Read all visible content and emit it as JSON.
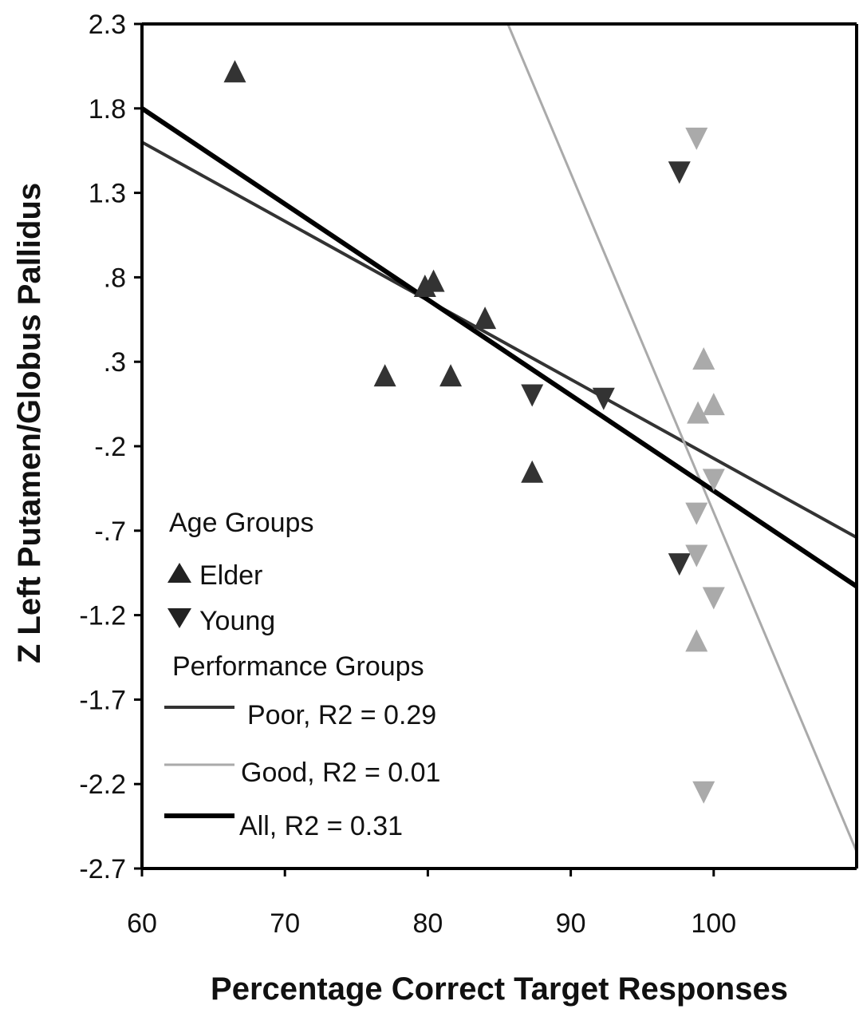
{
  "chart_data": {
    "type": "scatter",
    "xlabel": "Percentage Correct Target Responses",
    "ylabel": "Z Left Putamen/Globus Pallidus",
    "xlim": [
      60,
      110
    ],
    "ylim": [
      -2.7,
      2.3
    ],
    "xticks": [
      60,
      70,
      80,
      90,
      100
    ],
    "xtick_labels": [
      "60",
      "70",
      "80",
      "90",
      "100"
    ],
    "yticks": [
      2.3,
      1.8,
      1.3,
      0.8,
      0.3,
      -0.2,
      -0.7,
      -1.2,
      -1.7,
      -2.2,
      -2.7
    ],
    "ytick_labels": [
      "2.3",
      "1.8",
      "1.3",
      ".8",
      ".3",
      "-.2",
      "-.7",
      "-1.2",
      "-1.7",
      "-2.2",
      "-2.7"
    ],
    "grid": false,
    "legend": {
      "placement": "lower-left",
      "age_heading": "Age Groups",
      "perf_heading": "Performance Groups",
      "age_items": [
        {
          "label": "Elder",
          "marker": "triangle-up"
        },
        {
          "label": "Young",
          "marker": "triangle-down"
        }
      ],
      "perf_items": [
        {
          "label": "Poor, R2 = 0.29",
          "color": "#333333"
        },
        {
          "label": "Good, R2 = 0.01",
          "color": "#aaaaaa"
        },
        {
          "label": "All, R2 = 0.31",
          "color": "#000000"
        }
      ]
    },
    "colors": {
      "poor": "#333333",
      "good": "#aaaaaa",
      "all": "#000000"
    },
    "series": [
      {
        "name": "Poor",
        "color": "#333333",
        "points": [
          {
            "x": 66.5,
            "y": 2.02,
            "marker": "up"
          },
          {
            "x": 77,
            "y": 0.22,
            "marker": "up"
          },
          {
            "x": 79.8,
            "y": 0.75,
            "marker": "up"
          },
          {
            "x": 80.4,
            "y": 0.78,
            "marker": "up"
          },
          {
            "x": 81.6,
            "y": 0.22,
            "marker": "up"
          },
          {
            "x": 84,
            "y": 0.56,
            "marker": "up"
          },
          {
            "x": 87.3,
            "y": -0.35,
            "marker": "up"
          },
          {
            "x": 87.3,
            "y": 0.1,
            "marker": "down"
          },
          {
            "x": 92.3,
            "y": 0.08,
            "marker": "down"
          },
          {
            "x": 97.6,
            "y": 1.42,
            "marker": "down"
          },
          {
            "x": 97.6,
            "y": -0.9,
            "marker": "down"
          }
        ]
      },
      {
        "name": "Good",
        "color": "#aaaaaa",
        "points": [
          {
            "x": 98.8,
            "y": 1.62,
            "marker": "down"
          },
          {
            "x": 99.3,
            "y": 0.32,
            "marker": "up"
          },
          {
            "x": 98.9,
            "y": 0.0,
            "marker": "up"
          },
          {
            "x": 100,
            "y": 0.05,
            "marker": "up"
          },
          {
            "x": 100,
            "y": -0.4,
            "marker": "down"
          },
          {
            "x": 98.8,
            "y": -0.6,
            "marker": "down"
          },
          {
            "x": 98.8,
            "y": -0.85,
            "marker": "down"
          },
          {
            "x": 100,
            "y": -1.1,
            "marker": "down"
          },
          {
            "x": 98.8,
            "y": -1.35,
            "marker": "up"
          },
          {
            "x": 99.3,
            "y": -2.25,
            "marker": "down"
          }
        ]
      }
    ],
    "regression_lines": [
      {
        "name": "Poor",
        "color": "#333333",
        "width": 4,
        "x": [
          60,
          110
        ],
        "y": [
          1.6,
          -0.74
        ]
      },
      {
        "name": "Good",
        "color": "#aaaaaa",
        "width": 3,
        "x": [
          85.2,
          110
        ],
        "y": [
          2.38,
          -2.6
        ]
      },
      {
        "name": "All",
        "color": "#000000",
        "width": 6,
        "x": [
          60,
          110
        ],
        "y": [
          1.8,
          -1.03
        ]
      }
    ]
  }
}
